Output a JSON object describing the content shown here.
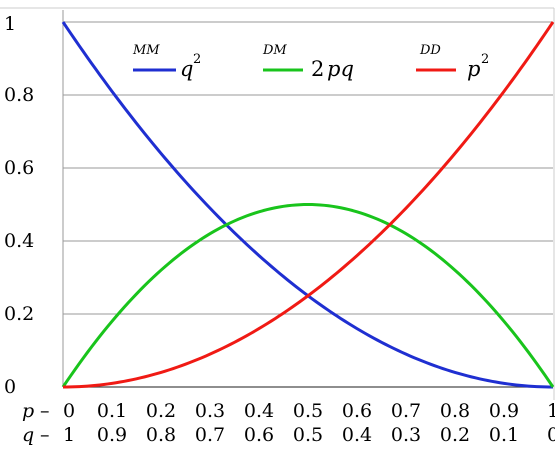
{
  "chart_data": {
    "type": "line",
    "x_range": [
      0,
      1
    ],
    "ylim": [
      0,
      1
    ],
    "grid": "horizontal",
    "y_ticks": [
      "0",
      "0.2",
      "0.4",
      "0.6",
      "0.8",
      "1"
    ],
    "x_axis_rows": [
      {
        "label": "p",
        "dash": "–",
        "ticks": [
          "0",
          "0.1",
          "0.2",
          "0.3",
          "0.4",
          "0.5",
          "0.6",
          "0.7",
          "0.8",
          "0.9",
          "1"
        ]
      },
      {
        "label": "q",
        "dash": "–",
        "ticks": [
          "1",
          "0.9",
          "0.8",
          "0.7",
          "0.6",
          "0.5",
          "0.4",
          "0.3",
          "0.2",
          "0.1",
          "0"
        ]
      }
    ],
    "legend_position": "top",
    "series": [
      {
        "genotype": "MM",
        "formula": "q",
        "superscript": "2",
        "color": "#1f2fd1",
        "formula_type": "q^2"
      },
      {
        "genotype": "DM",
        "coefficient": "2",
        "formula": "pq",
        "color": "#19c41c",
        "formula_type": "2pq"
      },
      {
        "genotype": "DD",
        "formula": "p",
        "superscript": "2",
        "color": "#f01a14",
        "formula_type": "p^2"
      }
    ]
  }
}
